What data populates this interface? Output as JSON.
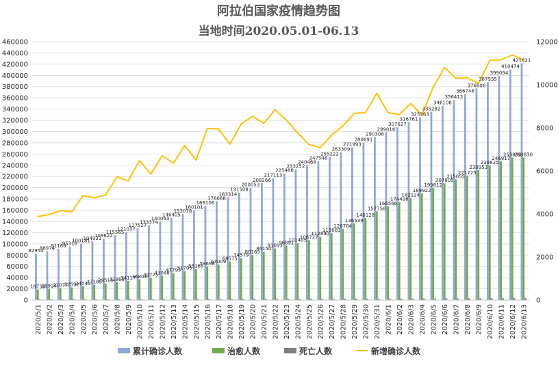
{
  "chart_data": {
    "type": "bar",
    "title": "阿拉伯国家疫情趋势图",
    "subtitle": "当地时间2020.05.01-06.13",
    "categories": [
      "2020/5/1",
      "2020/5/2",
      "2020/5/3",
      "2020/5/4",
      "2020/5/5",
      "2020/5/6",
      "2020/5/7",
      "2020/5/8",
      "2020/5/9",
      "2020/5/10",
      "2020/5/11",
      "2020/5/12",
      "2020/5/13",
      "2020/5/14",
      "2020/5/15",
      "2020/5/16",
      "2020/5/17",
      "2020/5/18",
      "2020/5/19",
      "2020/5/20",
      "2020/5/21",
      "2020/5/22",
      "2020/5/23",
      "2020/5/24",
      "2020/5/25",
      "2020/5/26",
      "2020/5/27",
      "2020/5/28",
      "2020/5/29",
      "2020/5/30",
      "2020/5/31",
      "2020/6/1",
      "2020/6/2",
      "2020/6/3",
      "2020/6/4",
      "2020/6/5",
      "2020/6/6",
      "2020/6/7",
      "2020/6/8",
      "2020/6/9",
      "2020/6/10",
      "2020/6/11",
      "2020/6/12",
      "2020/6/13"
    ],
    "series": [
      {
        "name": "累计确诊人数",
        "type": "bar",
        "axis": "left",
        "color": "#8EA9DB",
        "values": [
          82954,
          86974,
          91168,
          95318,
          100181,
          104931,
          109622,
          115565,
          121037,
          127527,
          133374,
          140063,
          146405,
          153078,
          160101,
          168106,
          176068,
          183314,
          191508,
          200053,
          208266,
          217113,
          225466,
          233252,
          240468,
          247548,
          255222,
          263309,
          271993,
          280691,
          290308,
          299016,
          307627,
          316761,
          325363,
          335282,
          346108,
          356412,
          366746,
          376806,
          387935,
          399094,
          410474,
          421621
        ],
        "labels": [
          "82954",
          "86974",
          "91168",
          "95318",
          "100181",
          "104931",
          "109622",
          "115565",
          "121037",
          "127527",
          "133374",
          "140063",
          "146405",
          "153078",
          "160101",
          "168106",
          "176068",
          "183314",
          "191508",
          "200053",
          "208266",
          "217113",
          "225466",
          "233252",
          "240468",
          "247548",
          "255222",
          "263309",
          "271993",
          "280691",
          "290308",
          "299016",
          "307627",
          "316761",
          "325363",
          "335282",
          "346108",
          "356412",
          "366746",
          "376806",
          "387935",
          "399094",
          "410474",
          "421621"
        ]
      },
      {
        "name": "治愈人数",
        "type": "bar",
        "axis": "left",
        "color": "#70AD47",
        "values": [
          18739,
          19924,
          21077,
          22592,
          24545,
          27189,
          29513,
          31868,
          34117,
          36803,
          39775,
          43048,
          47793,
          51705,
          55165,
          59698,
          63009,
          68575,
          74579,
          80169,
          86150,
          91693,
          96891,
          101405,
          106727,
          112890,
          119083,
          126784,
          136539,
          146128,
          157758,
          166566,
          174416,
          182124,
          189922,
          199812,
          207805,
          215055,
          221725,
          230953,
          239825,
          246917,
          253830,
          253830
        ],
        "labels": [
          "18739",
          "19924",
          "21077",
          "22592",
          "24545",
          "27189",
          "29513",
          "31868",
          "34117",
          "36803",
          "39775",
          "43048",
          "47793",
          "51705",
          "55165",
          "59698",
          "63009",
          "68575",
          "74579",
          "80169",
          "86150",
          "91693",
          "96891",
          "101405",
          "106727",
          "112890",
          "119083",
          "126784",
          "136539",
          "146128",
          "157758",
          "166566",
          "174416",
          "182124",
          "189922",
          "199812",
          "207805",
          "215055",
          "221725",
          "230953",
          "239825",
          "246917",
          "253830",
          "253830"
        ]
      },
      {
        "name": "死亡人数",
        "type": "bar",
        "axis": "left",
        "color": "#7F7F7F",
        "values": [
          1213,
          1249,
          1283,
          1317,
          1352,
          1389,
          1425,
          1466,
          1502,
          1546,
          1583,
          1625,
          1668,
          1708,
          1747,
          1791,
          1836,
          1876,
          1919,
          1966,
          2014,
          2062,
          2104,
          2149,
          2194,
          2240,
          2291,
          2344,
          2399,
          2456,
          2517,
          2573,
          2629,
          2686,
          2749,
          2818,
          2887,
          2956,
          3025,
          3096,
          3172,
          3250,
          3329,
          3413
        ]
      },
      {
        "name": "新增确诊人数",
        "type": "line",
        "axis": "right",
        "color": "#FFC000",
        "values": [
          3880,
          3970,
          4150,
          4100,
          4850,
          4750,
          4880,
          5730,
          5540,
          6480,
          5850,
          6700,
          6360,
          7170,
          6500,
          7970,
          7950,
          7240,
          8180,
          8530,
          8210,
          8840,
          8360,
          7760,
          7220,
          7080,
          7660,
          8090,
          8670,
          8700,
          9600,
          8700,
          8620,
          9130,
          8600,
          9900,
          10800,
          10300,
          10330,
          10060,
          11130,
          11160,
          11380,
          11150
        ]
      }
    ],
    "xlabel": "",
    "ylabel": "",
    "ylim": [
      0,
      460000
    ],
    "y2lim": [
      0,
      12000
    ],
    "yticks": [
      "0",
      "20000",
      "40000",
      "60000",
      "80000",
      "100000",
      "120000",
      "140000",
      "160000",
      "180000",
      "200000",
      "220000",
      "240000",
      "260000",
      "280000",
      "300000",
      "320000",
      "340000",
      "360000",
      "380000",
      "400000",
      "420000",
      "440000",
      "460000"
    ],
    "y2ticks": [
      "0",
      "2000",
      "4000",
      "6000",
      "8000",
      "10000",
      "12000"
    ],
    "grid": true,
    "legend_position": "bottom"
  }
}
